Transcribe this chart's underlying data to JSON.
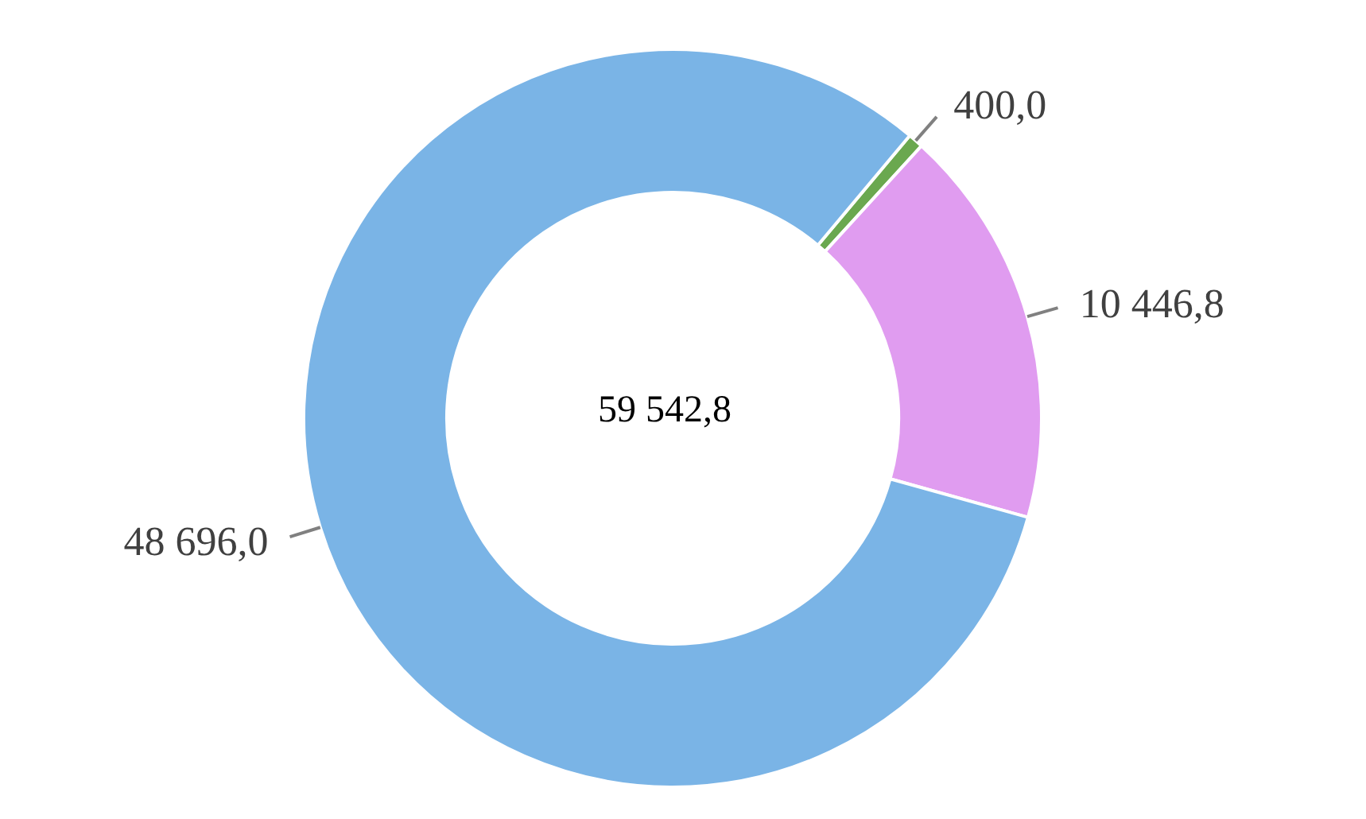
{
  "chart_data": {
    "type": "donut",
    "categories": [
      null,
      null,
      null
    ],
    "values": [
      400.0,
      10446.8,
      48696.0
    ],
    "colors": [
      "#6aa84f",
      "#e09cf0",
      "#7ab4e6"
    ],
    "value_labels": [
      "400,0",
      "10 446,8",
      "48 696,0"
    ],
    "annotations": [
      "59 542,8"
    ]
  }
}
